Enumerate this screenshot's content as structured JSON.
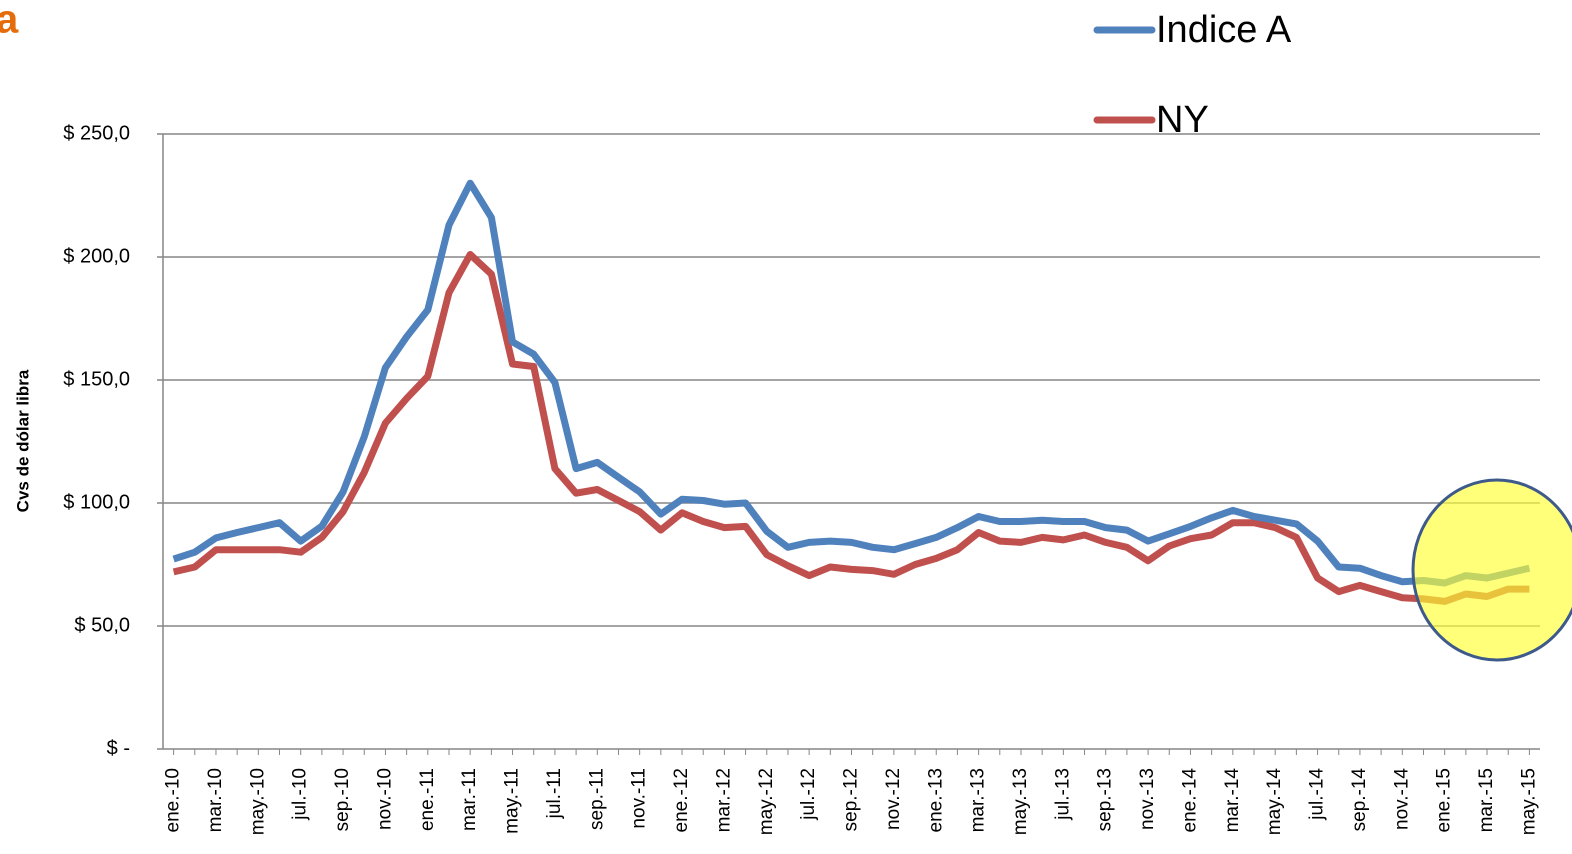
{
  "chart_data": {
    "type": "line",
    "title": "a",
    "y_label": "Cvs de dólar libra",
    "categories": [
      "ene.-10",
      null,
      "mar.-10",
      null,
      "may.-10",
      null,
      "jul.-10",
      null,
      "sep.-10",
      null,
      "nov.-10",
      null,
      "ene.-11",
      null,
      "mar.-11",
      null,
      "may.-11",
      null,
      "jul.-11",
      null,
      "sep.-11",
      null,
      "nov.-11",
      null,
      "ene.-12",
      null,
      "mar.-12",
      null,
      "may.-12",
      null,
      "jul.-12",
      null,
      "sep.-12",
      null,
      "nov.-12",
      null,
      "ene.-13",
      null,
      "mar.-13",
      null,
      "may.-13",
      null,
      "jul.-13",
      null,
      "sep.-13",
      null,
      "nov.-13",
      null,
      "ene.-14",
      null,
      "mar.-14",
      null,
      "may.-14",
      null,
      "jul.-14",
      null,
      "sep.-14",
      null,
      "nov.-14",
      null,
      "ene.-15",
      null,
      "mar.-15",
      null,
      "may.-15"
    ],
    "series": [
      {
        "name": "Indice A",
        "color": "#4f81bd",
        "values": [
          77.2,
          80,
          85.8,
          88,
          90,
          92,
          84.5,
          90.6,
          104.5,
          127,
          155,
          167.5,
          178.5,
          213,
          230,
          216,
          165.5,
          160.5,
          149,
          114,
          116.5,
          110.5,
          104.5,
          95.5,
          101.5,
          101,
          99.5,
          100,
          88.5,
          82,
          84,
          84.5,
          84,
          82,
          81,
          83.5,
          86,
          90,
          94.5,
          92.5,
          92.5,
          93,
          92.5,
          92.5,
          90,
          89,
          84.5,
          87.5,
          90.5,
          94,
          97,
          94.5,
          93,
          91.5,
          84.5,
          74,
          73.5,
          70.5,
          68,
          68.5,
          67.5,
          70.5,
          69.5,
          71.5,
          73.5
        ]
      },
      {
        "name": "NY",
        "color": "#c0504d",
        "values": [
          72,
          74,
          81,
          81,
          81,
          81,
          80,
          86,
          96.5,
          112.5,
          132.5,
          142.5,
          151.5,
          185.5,
          201,
          193,
          156.5,
          155.5,
          114,
          104,
          105.5,
          101,
          96.5,
          89,
          96,
          92.5,
          90,
          90.5,
          79,
          74.5,
          70.5,
          74,
          73,
          72.5,
          71,
          75,
          77.5,
          81,
          88,
          84.5,
          84,
          86,
          85,
          87,
          84,
          82,
          76.5,
          82.5,
          85.5,
          87,
          92,
          92,
          90,
          86,
          69.5,
          64,
          66.5,
          64,
          61.5,
          61,
          60,
          63,
          62,
          65,
          65
        ]
      }
    ],
    "ylim": [
      0,
      250
    ],
    "yticks": [
      {
        "value": 0,
        "label": "$ -"
      },
      {
        "value": 50,
        "label": "$ 50,0"
      },
      {
        "value": 100,
        "label": "$ 100,0"
      },
      {
        "value": 150,
        "label": "$ 150,0"
      },
      {
        "value": 200,
        "label": "$ 200,0"
      },
      {
        "value": 250,
        "label": "$ 250,0"
      }
    ],
    "grid": true
  }
}
